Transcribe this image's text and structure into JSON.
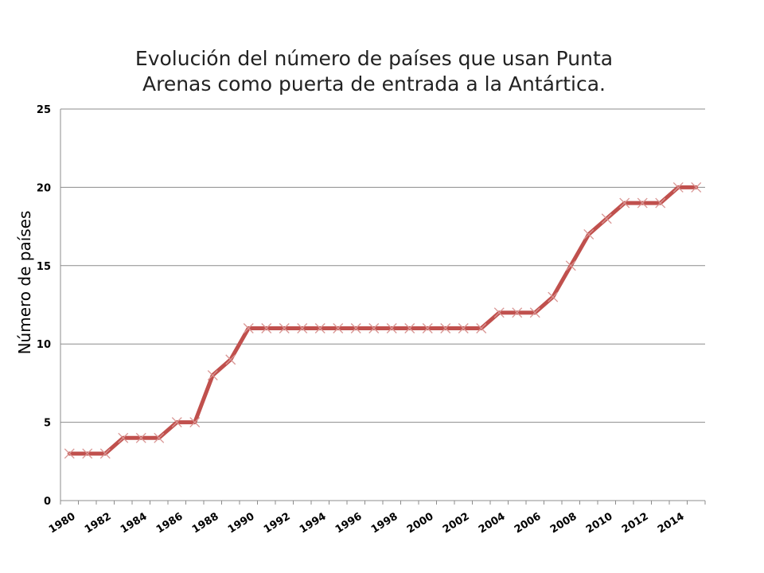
{
  "chart_data": {
    "type": "line",
    "title_line1": "Evolución del número de países que usan Punta",
    "title_line2": "Arenas como puerta de entrada a la Antártica.",
    "ylabel": "Número de países",
    "xlabel": "",
    "ylim": [
      0,
      25
    ],
    "yticks": [
      0,
      5,
      10,
      15,
      20,
      25
    ],
    "xtick_labels": [
      "1980",
      "1982",
      "1984",
      "1986",
      "1988",
      "1990",
      "1992",
      "1994",
      "1996",
      "1998",
      "2000",
      "2002",
      "2004",
      "2006",
      "2008",
      "2010",
      "2012",
      "2014"
    ],
    "grid": true,
    "legend": "none",
    "line_color": "#C0504D",
    "marker_color": "#D99694",
    "x": [
      1980,
      1981,
      1982,
      1983,
      1984,
      1985,
      1986,
      1987,
      1988,
      1989,
      1990,
      1991,
      1992,
      1993,
      1994,
      1995,
      1996,
      1997,
      1998,
      1999,
      2000,
      2001,
      2002,
      2003,
      2004,
      2005,
      2006,
      2007,
      2008,
      2009,
      2010,
      2011,
      2012,
      2013,
      2014,
      2015
    ],
    "values": [
      3,
      3,
      3,
      4,
      4,
      4,
      5,
      5,
      8,
      9,
      11,
      11,
      11,
      11,
      11,
      11,
      11,
      11,
      11,
      11,
      11,
      11,
      11,
      11,
      12,
      12,
      12,
      13,
      15,
      17,
      18,
      19,
      19,
      19,
      20,
      20
    ]
  }
}
